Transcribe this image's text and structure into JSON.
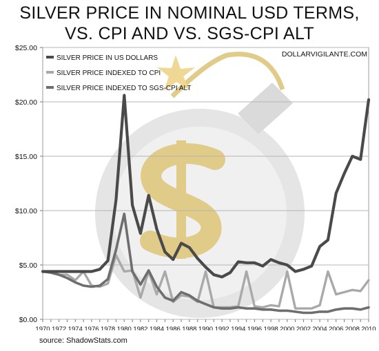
{
  "title_line1": "SILVER PRICE IN NOMINAL USD TERMS,",
  "title_line2": "VS. CPI AND VS. SGS-CPI ALT",
  "watermark": "DOLLARVIGILANTE.COM",
  "source": "source: ShadowStats.com",
  "colors": {
    "nominal": "#4a4a4a",
    "cpi": "#a9a9a9",
    "sgs": "#6e6e6e",
    "logo_gold": "#c9a227",
    "logo_gray": "#c8c8c8"
  },
  "chart_data": {
    "type": "line",
    "title": "SILVER PRICE IN NOMINAL USD TERMS, VS. CPI AND VS. SGS-CPI ALT",
    "xlabel": "",
    "ylabel": "",
    "ylim": [
      0,
      25
    ],
    "grid": true,
    "legend_position": "top-left",
    "y_ticks": [
      "$0.00",
      "$5.00",
      "$10.00",
      "$15.00",
      "$20.00",
      "$25.00"
    ],
    "x_ticks": [
      "1970",
      "1972",
      "1974",
      "1976",
      "1978",
      "1980",
      "1982",
      "1984",
      "1986",
      "1988",
      "1990",
      "1992",
      "1994",
      "1996",
      "1998",
      "2000",
      "2002",
      "2004",
      "2006",
      "2008",
      "2010"
    ],
    "x": [
      1970,
      1971,
      1972,
      1973,
      1974,
      1975,
      1976,
      1977,
      1978,
      1979,
      1980,
      1981,
      1982,
      1983,
      1984,
      1985,
      1986,
      1987,
      1988,
      1989,
      1990,
      1991,
      1992,
      1993,
      1994,
      1995,
      1996,
      1997,
      1998,
      1999,
      2000,
      2001,
      2002,
      2003,
      2004,
      2005,
      2006,
      2007,
      2008,
      2009,
      2010
    ],
    "series": [
      {
        "name": "SILVER PRICE IN US DOLLARS",
        "values": [
          4.4,
          4.4,
          4.4,
          4.4,
          4.4,
          4.4,
          4.4,
          4.6,
          5.4,
          11.0,
          20.6,
          10.5,
          7.9,
          11.4,
          8.3,
          6.2,
          5.5,
          7.0,
          6.6,
          5.6,
          4.8,
          4.1,
          3.9,
          4.3,
          5.3,
          5.2,
          5.2,
          4.9,
          5.5,
          5.2,
          5.0,
          4.4,
          4.6,
          4.9,
          6.7,
          7.3,
          11.6,
          13.4,
          15.0,
          14.7,
          20.2
        ]
      },
      {
        "name": "SILVER PRICE INDEXED TO CPI",
        "values": [
          4.4,
          4.3,
          4.1,
          4.1,
          3.6,
          4.4,
          3.1,
          3.0,
          3.3,
          5.9,
          4.4,
          4.5,
          2.0,
          4.4,
          2.3,
          4.4,
          1.6,
          2.2,
          2.1,
          1.6,
          4.4,
          1.1,
          1.1,
          1.1,
          1.2,
          4.4,
          1.2,
          1.1,
          1.3,
          1.2,
          4.4,
          1.0,
          1.0,
          1.0,
          1.3,
          4.4,
          2.3,
          2.5,
          2.7,
          2.6,
          3.6
        ]
      },
      {
        "name": "SILVER PRICE INDEXED TO SGS-CPI ALT",
        "values": [
          4.4,
          4.3,
          4.1,
          3.8,
          3.4,
          3.1,
          3.0,
          3.1,
          3.7,
          6.4,
          9.7,
          4.4,
          3.2,
          4.5,
          3.0,
          2.0,
          1.7,
          2.5,
          2.2,
          1.7,
          1.4,
          1.1,
          1.0,
          1.0,
          1.1,
          1.0,
          1.0,
          0.9,
          0.9,
          0.8,
          0.8,
          0.7,
          0.6,
          0.6,
          0.7,
          0.7,
          0.9,
          1.0,
          1.0,
          0.9,
          1.1
        ]
      }
    ]
  }
}
